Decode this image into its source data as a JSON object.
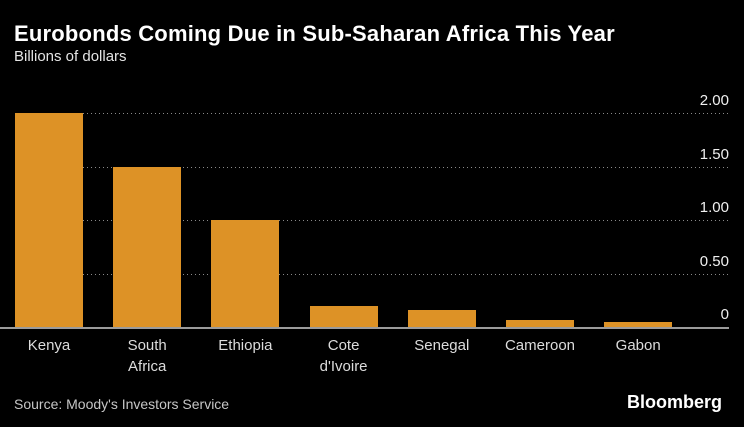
{
  "header": {
    "title": "Eurobonds Coming Due in Sub-Saharan Africa This Year",
    "subtitle": "Billions of dollars"
  },
  "footer": {
    "source": "Source: Moody's Investors Service",
    "brand": "Bloomberg"
  },
  "colors": {
    "background": "#000000",
    "bar": "#DD9226",
    "baseline": "#9B9B9B",
    "gridline": "#8A8A8A",
    "title_text": "#FFFFFF",
    "subtitle_text": "#E4E4E4",
    "axis_text": "#F0F0F0",
    "category_text": "#DCDCDC",
    "source_text": "#C6C6C6",
    "brand_text": "#FFFFFF"
  },
  "chart_data": {
    "type": "bar",
    "title": "Eurobonds Coming Due in Sub-Saharan Africa This Year",
    "subtitle": "Billions of dollars",
    "unit": "billions of dollars",
    "categories": [
      "Kenya",
      "South Africa",
      "Ethiopia",
      "Cote d'Ivoire",
      "Senegal",
      "Cameroon",
      "Gabon"
    ],
    "category_label_lines": [
      [
        "Kenya"
      ],
      [
        "South",
        "Africa"
      ],
      [
        "Ethiopia"
      ],
      [
        "Cote",
        "d'Ivoire"
      ],
      [
        "Senegal"
      ],
      [
        "Cameroon"
      ],
      [
        "Gabon"
      ]
    ],
    "values": [
      2.0,
      1.5,
      1.0,
      0.2,
      0.16,
      0.07,
      0.05
    ],
    "yticks": [
      {
        "value": 2.0,
        "label": "2.00"
      },
      {
        "value": 1.5,
        "label": "1.50"
      },
      {
        "value": 1.0,
        "label": "1.00"
      },
      {
        "value": 0.5,
        "label": "0.50"
      },
      {
        "value": 0.0,
        "label": "0"
      }
    ],
    "ylim": [
      0,
      2.24
    ],
    "grid": "horizontal-dotted",
    "axis_side": "right",
    "legend": "none"
  }
}
